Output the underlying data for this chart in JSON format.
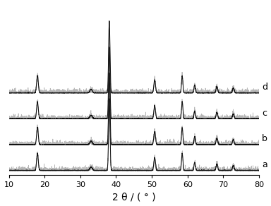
{
  "x_min": 10,
  "x_max": 80,
  "xlabel_plain": "2 θ / ( ° )",
  "xticks": [
    10,
    20,
    30,
    40,
    50,
    60,
    70,
    80
  ],
  "background_color": "#ffffff",
  "offsets": [
    0,
    0.18,
    0.36,
    0.54
  ],
  "labels": [
    "a",
    "b",
    "c",
    "d"
  ],
  "peaks": [
    18.0,
    33.0,
    38.1,
    50.8,
    58.5,
    62.0,
    68.2,
    72.8
  ],
  "peak_heights": [
    0.12,
    0.025,
    0.5,
    0.09,
    0.12,
    0.055,
    0.045,
    0.035
  ],
  "peak_widths": [
    0.55,
    0.8,
    0.45,
    0.55,
    0.45,
    0.5,
    0.55,
    0.55
  ],
  "noise_amplitude": 0.004,
  "label_fontsize": 9,
  "tick_fontsize": 8,
  "xlabel_fontsize": 10
}
